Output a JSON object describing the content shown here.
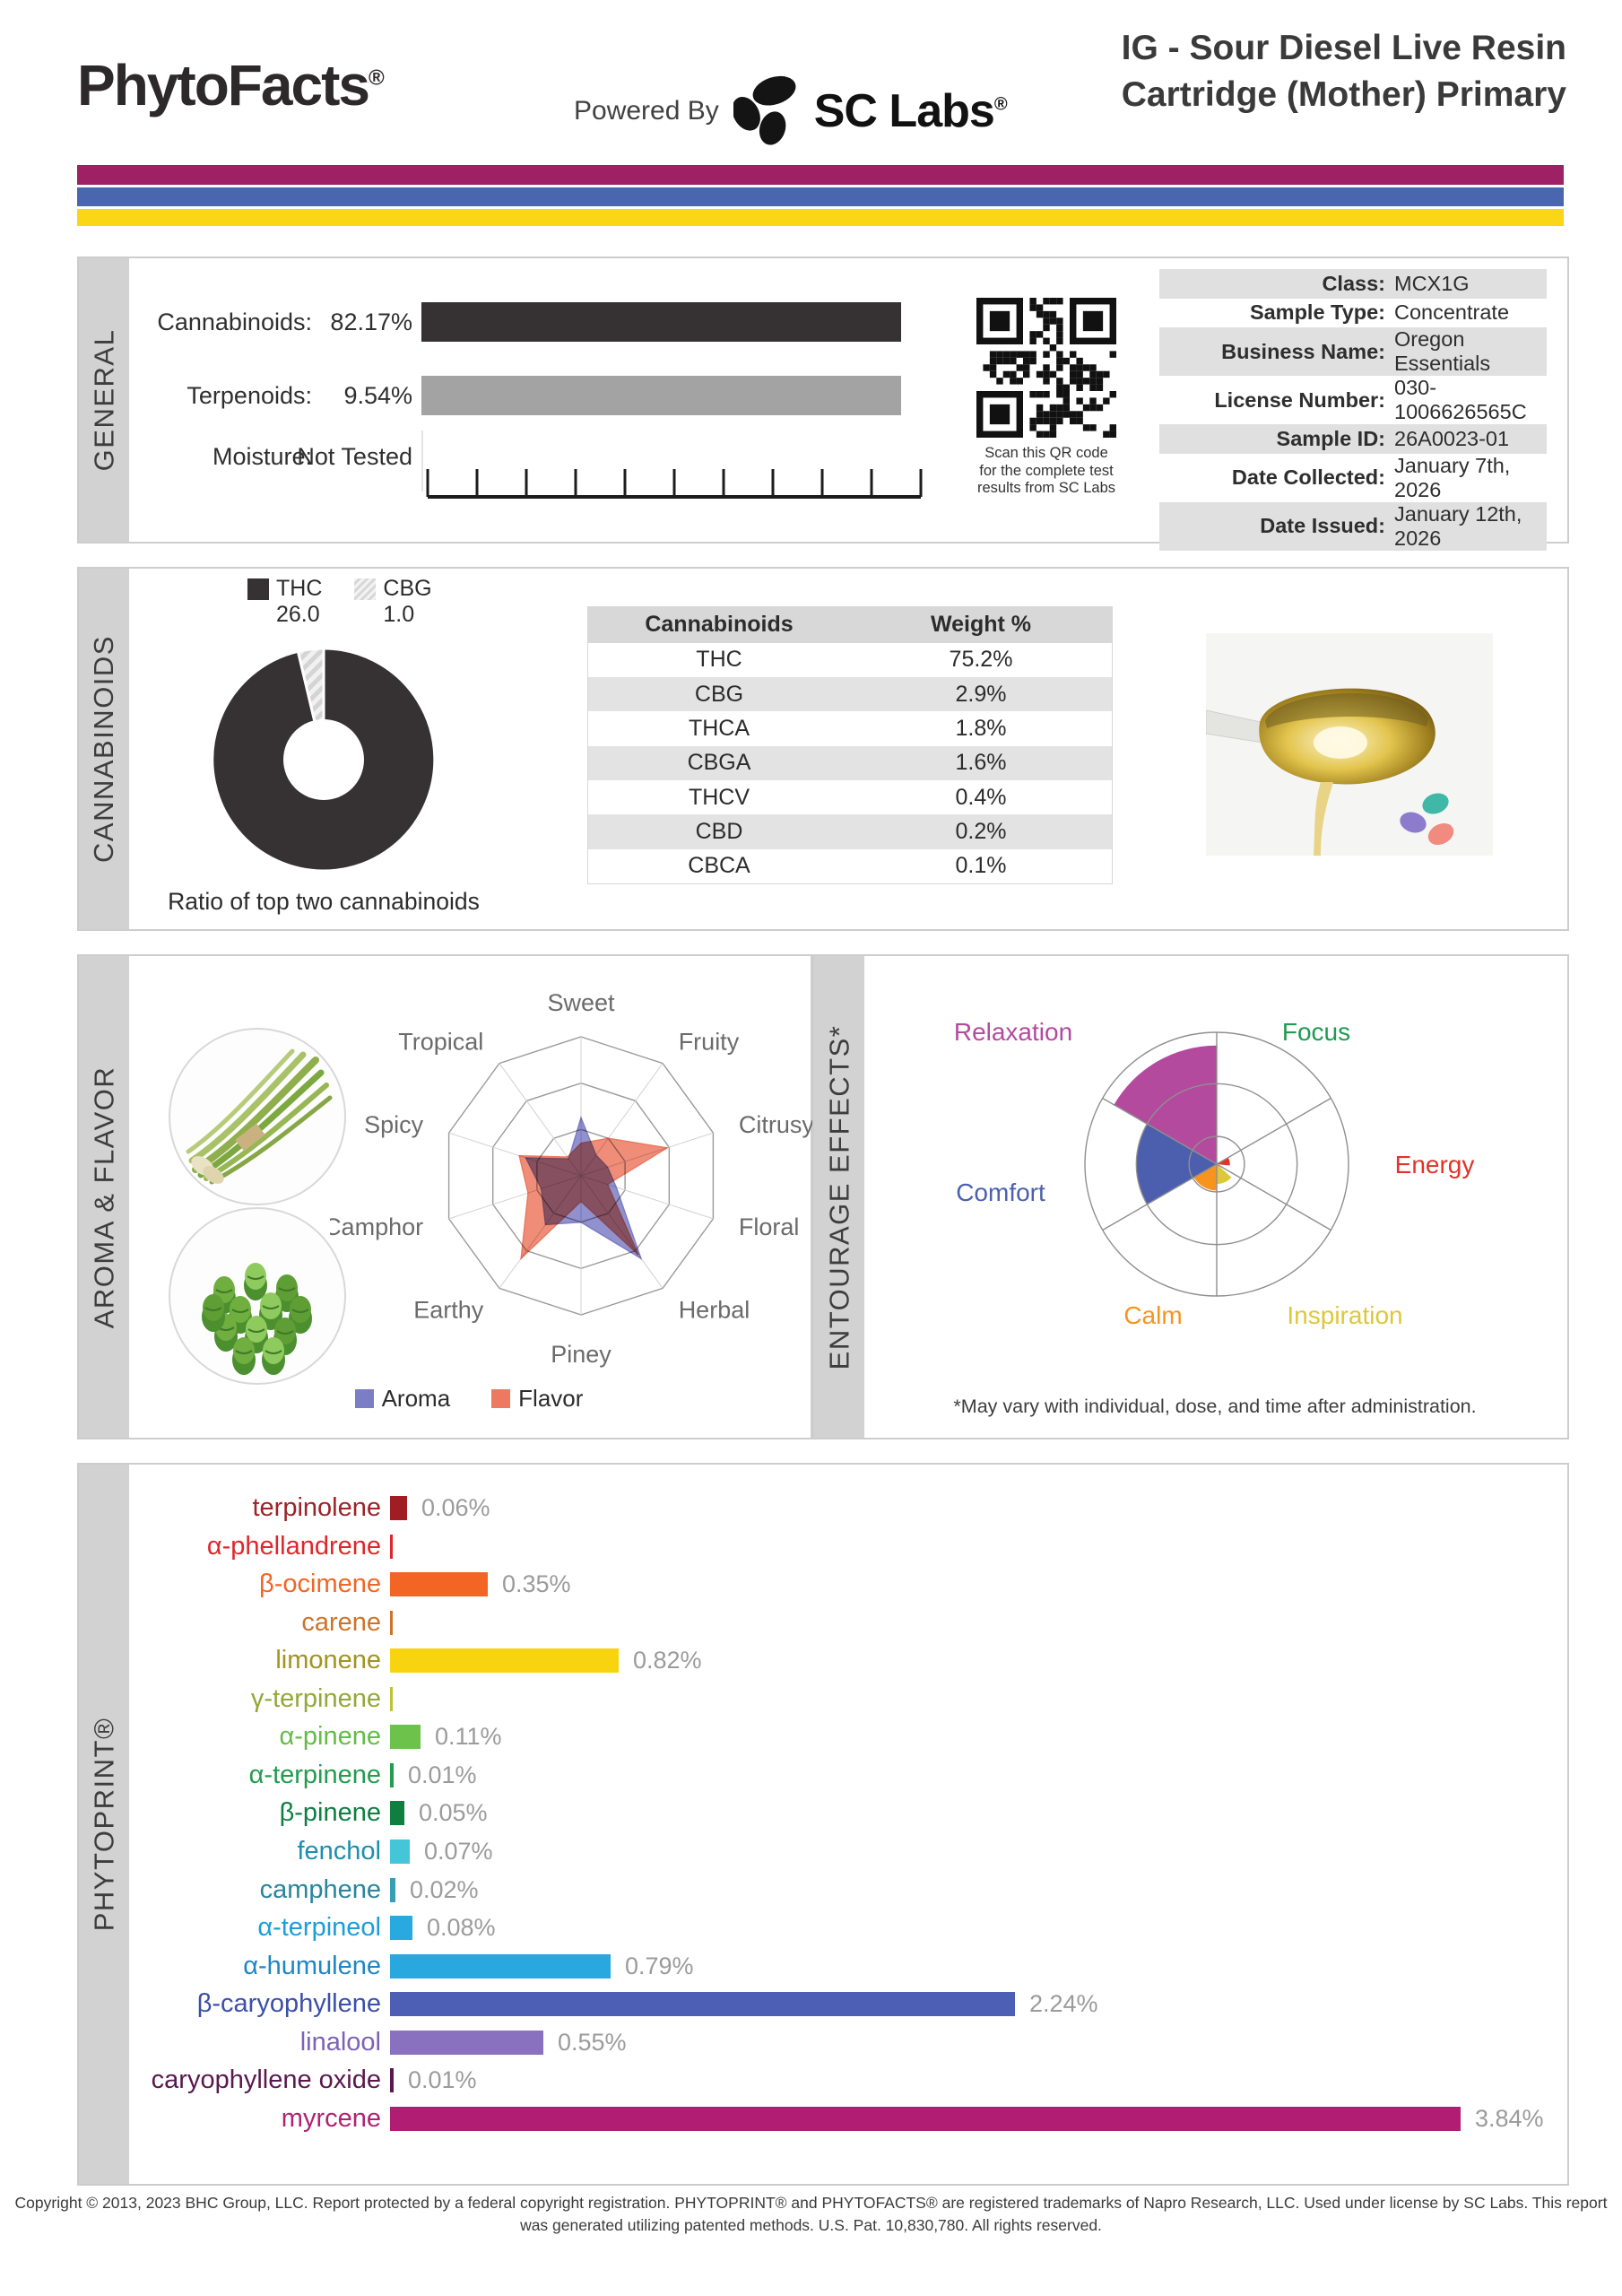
{
  "header": {
    "brand": "PhytoFacts",
    "brand_reg": "®",
    "powered_by": "Powered By",
    "lab_name": "SC Labs",
    "lab_reg": "®",
    "title_line1": "IG - Sour Diesel Live Resin",
    "title_line2": "Cartridge (Mother) Primary"
  },
  "stripes": [
    "#9e2166",
    "#4a66ae",
    "#f9d616"
  ],
  "general": {
    "section_label": "GENERAL",
    "metrics": [
      {
        "label": "Cannabinoids:",
        "value": "82.17%",
        "bar_color": "#363132"
      },
      {
        "label": "Terpenoids:",
        "value": "9.54%",
        "bar_color": "#a3a3a3"
      },
      {
        "label": "Moisture:",
        "value": "Not Tested",
        "bar_color": null
      }
    ],
    "qr_caption": [
      "Scan this QR code",
      "for the complete test",
      "results from SC Labs"
    ],
    "info": [
      [
        "Class:",
        "MCX1G"
      ],
      [
        "Sample Type:",
        "Concentrate"
      ],
      [
        "Business Name:",
        "Oregon Essentials"
      ],
      [
        "License Number:",
        "030-1006626565C"
      ],
      [
        "Sample ID:",
        "26A0023-01"
      ],
      [
        "Date Collected:",
        "January 7th, 2026"
      ],
      [
        "Date Issued:",
        "January 12th, 2026"
      ]
    ]
  },
  "cannabinoids": {
    "section_label": "CANNABINOIDS",
    "caption": "Ratio of top two cannabinoids",
    "table_headers": [
      "Cannabinoids",
      "Weight %"
    ],
    "table": [
      [
        "THC",
        "75.2%"
      ],
      [
        "CBG",
        "2.9%"
      ],
      [
        "THCA",
        "1.8%"
      ],
      [
        "CBGA",
        "1.6%"
      ],
      [
        "THCV",
        "0.4%"
      ],
      [
        "CBD",
        "0.2%"
      ],
      [
        "CBCA",
        "0.1%"
      ]
    ]
  },
  "aroma": {
    "section_label": "AROMA & FLAVOR"
  },
  "entourage": {
    "section_label": "ENTOURAGE EFFECTS*",
    "footnote": "*May vary with individual, dose, and time after administration."
  },
  "phytoprint": {
    "section_label": "PHYTOPRINT®"
  },
  "footer": {
    "line1": "Copyright © 2013, 2023 BHC Group, LLC. Report protected by a federal copyright registration. PHYTOPRINT® and PHYTOFACTS® are registered trademarks of Napro Research, LLC. Used under license by SC Labs. This report",
    "line2": "was generated utilizing patented methods. U.S. Pat. 10,830,780. All rights reserved."
  },
  "chart_data": [
    {
      "type": "pie",
      "title": "Ratio of top two cannabinoids",
      "labels": [
        "THC",
        "CBG"
      ],
      "values": [
        26.0,
        1.0
      ],
      "value_labels": [
        "26.0",
        "1.0"
      ],
      "colors": [
        "#363132",
        "hatched-gray"
      ],
      "hole": true
    },
    {
      "type": "radar",
      "axes": [
        "Sweet",
        "Fruity",
        "Citrusy",
        "Floral",
        "Herbal",
        "Piney",
        "Earthy",
        "Camphor",
        "Spicy",
        "Tropical"
      ],
      "scale_max": 3,
      "rings": 3,
      "legend_position": "bottom",
      "series": [
        {
          "name": "Aroma",
          "color": "#7c7ec5",
          "values": [
            1.25,
            0.55,
            0.6,
            0.8,
            2.2,
            1.0,
            1.3,
            0.9,
            1.25,
            0.45
          ]
        },
        {
          "name": "Flavor",
          "color": "#ec7960",
          "values": [
            0.7,
            1.0,
            1.95,
            0.6,
            2.1,
            0.55,
            2.2,
            1.2,
            1.4,
            0.5
          ]
        }
      ]
    },
    {
      "type": "polar-wedges",
      "title": "Entourage Effects",
      "rings": [
        0.21,
        0.61,
        1.0
      ],
      "sectors": [
        {
          "name": "Relaxation",
          "color": "#b44a9e",
          "value": 0.9,
          "start": 300,
          "end": 360
        },
        {
          "name": "Focus",
          "color": "#1d9b50",
          "value": 0.0,
          "start": 0,
          "end": 60
        },
        {
          "name": "Energy",
          "color": "#e53228",
          "value": 0.1,
          "start": 58,
          "end": 96
        },
        {
          "name": "Inspiration",
          "color": "#ddc83a",
          "value": 0.15,
          "start": 132,
          "end": 180
        },
        {
          "name": "Calm",
          "color": "#f7941e",
          "value": 0.2,
          "start": 180,
          "end": 243
        },
        {
          "name": "Comfort",
          "color": "#4c5fae",
          "value": 0.61,
          "start": 240,
          "end": 300
        }
      ]
    },
    {
      "type": "bar",
      "orientation": "horizontal",
      "unit": "%",
      "categories": [
        "terpinolene",
        "α-phellandrene",
        "β-ocimene",
        "carene",
        "limonene",
        "γ-terpinene",
        "α-pinene",
        "α-terpinene",
        "β-pinene",
        "fenchol",
        "camphene",
        "α-terpineol",
        "α-humulene",
        "β-caryophyllene",
        "linalool",
        "caryophyllene oxide",
        "myrcene"
      ],
      "values": [
        0.06,
        null,
        0.35,
        null,
        0.82,
        null,
        0.11,
        0.01,
        0.05,
        0.07,
        0.02,
        0.08,
        0.79,
        2.24,
        0.55,
        0.01,
        3.84
      ],
      "value_labels": [
        "0.06%",
        "",
        "0.35%",
        "",
        "0.82%",
        "",
        "0.11%",
        "0.01%",
        "0.05%",
        "0.07%",
        "0.02%",
        "0.08%",
        "0.79%",
        "2.24%",
        "0.55%",
        "0.01%",
        "3.84%"
      ],
      "label_colors": [
        "#9f2227",
        "#e0262b",
        "#f26524",
        "#cd7429",
        "#a3931f",
        "#93a83a",
        "#64bb46",
        "#229c4d",
        "#0e7e41",
        "#1b8fae",
        "#28859c",
        "#1b9ed9",
        "#1f86c4",
        "#3c4fa9",
        "#7e62b5",
        "#59184f",
        "#b02372"
      ],
      "bar_colors": [
        "#9f1d23",
        "#e0262b",
        "#f26524",
        "#cd7429",
        "#f8d410",
        "#b9c437",
        "#6cc24a",
        "#229c4d",
        "#0e7e41",
        "#45c5d8",
        "#3a9eb2",
        "#28aae1",
        "#29a8e0",
        "#4d5fb5",
        "#8a71c0",
        "#5a1a50",
        "#b01d72"
      ]
    }
  ]
}
